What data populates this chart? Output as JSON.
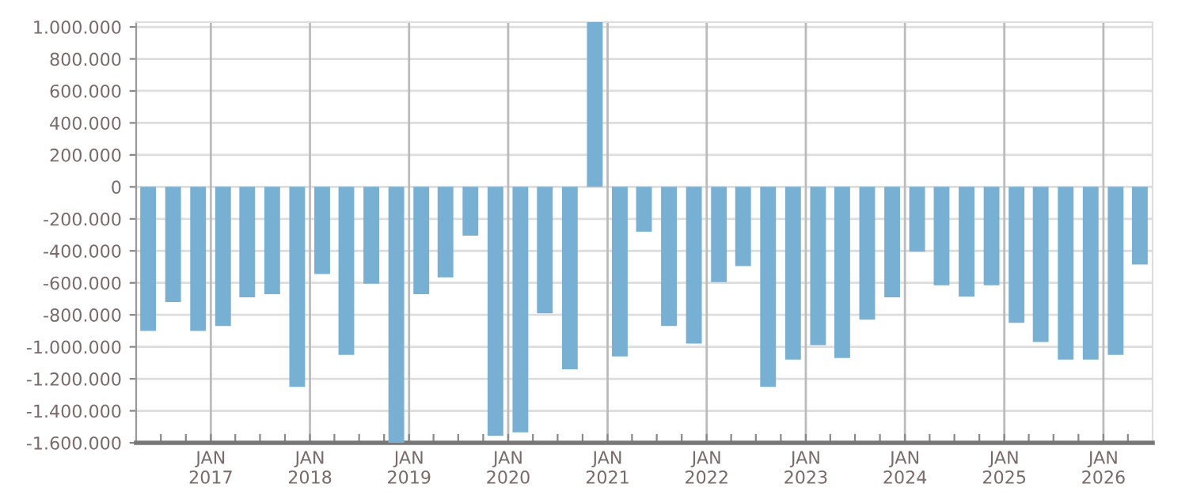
{
  "chart_data": {
    "type": "bar",
    "x": [
      "2016-05-15",
      "2016-08-15",
      "2016-11-15",
      "2017-02-15",
      "2017-05-15",
      "2017-08-15",
      "2017-11-15",
      "2018-02-15",
      "2018-05-15",
      "2018-08-15",
      "2018-11-15",
      "2019-02-15",
      "2019-05-15",
      "2019-08-15",
      "2019-11-15",
      "2020-02-15",
      "2020-05-15",
      "2020-08-15",
      "2020-11-15",
      "2021-02-15",
      "2021-05-15",
      "2021-08-15",
      "2021-11-15",
      "2022-02-15",
      "2022-05-15",
      "2022-08-15",
      "2022-11-15",
      "2023-02-15",
      "2023-05-15",
      "2023-08-15",
      "2023-11-15",
      "2024-02-15",
      "2024-05-15",
      "2024-08-15",
      "2024-11-15",
      "2025-02-15",
      "2025-05-15",
      "2025-08-15",
      "2025-11-15",
      "2026-02-15",
      "2026-05-15"
    ],
    "values": [
      -900000,
      -720000,
      -900000,
      -870000,
      -690000,
      -670000,
      -1250000,
      -545000,
      -1050000,
      -605000,
      -1600000,
      -670000,
      -565000,
      -305000,
      -1555000,
      -1535000,
      -790000,
      -1140000,
      1030000,
      -1060000,
      -280000,
      -870000,
      -980000,
      -595000,
      -495000,
      -1250000,
      -1080000,
      -990000,
      -1070000,
      -830000,
      -690000,
      -405000,
      -615000,
      -685000,
      -615000,
      -850000,
      -970000,
      -1080000,
      -1080000,
      -1050000,
      -485000
    ],
    "color": "#78b0d3",
    "ylim": [
      -1600000,
      1030000
    ],
    "yticks": [
      {
        "value": -1600000,
        "label": "-1.600.000"
      },
      {
        "value": -1400000,
        "label": "-1.400.000"
      },
      {
        "value": -1200000,
        "label": "-1.200.000"
      },
      {
        "value": -1000000,
        "label": "-1.000.000"
      },
      {
        "value": -800000,
        "label": "-800.000"
      },
      {
        "value": -600000,
        "label": "-600.000"
      },
      {
        "value": -400000,
        "label": "-400.000"
      },
      {
        "value": -200000,
        "label": "-200.000"
      },
      0,
      {
        "value": 200000,
        "label": "200.000"
      },
      {
        "value": 400000,
        "label": "400.000"
      },
      {
        "value": 600000,
        "label": "600.000"
      },
      {
        "value": 800000,
        "label": "800.000"
      },
      {
        "value": 1000000,
        "label": "1.000.000"
      }
    ],
    "xlim": [
      "2016-04-01",
      "2026-07-01"
    ],
    "xticks": [
      {
        "value": "2016-07-01",
        "label": null
      },
      {
        "value": "2016-10-01",
        "label": null
      },
      {
        "value": "2017-01-01",
        "label": "JAN\n2017"
      },
      {
        "value": "2017-04-01",
        "label": null
      },
      {
        "value": "2017-07-01",
        "label": null
      },
      {
        "value": "2017-10-01",
        "label": null
      },
      {
        "value": "2018-01-01",
        "label": "JAN\n2018"
      },
      {
        "value": "2018-04-01",
        "label": null
      },
      {
        "value": "2018-07-01",
        "label": null
      },
      {
        "value": "2018-10-01",
        "label": null
      },
      {
        "value": "2019-01-01",
        "label": "JAN\n2019"
      },
      {
        "value": "2019-04-01",
        "label": null
      },
      {
        "value": "2019-07-01",
        "label": null
      },
      {
        "value": "2019-10-01",
        "label": null
      },
      {
        "value": "2020-01-01",
        "label": "JAN\n2020"
      },
      {
        "value": "2020-04-01",
        "label": null
      },
      {
        "value": "2020-07-01",
        "label": null
      },
      {
        "value": "2020-10-01",
        "label": null
      },
      {
        "value": "2021-01-01",
        "label": "JAN\n2021"
      },
      {
        "value": "2021-04-01",
        "label": null
      },
      {
        "value": "2021-07-01",
        "label": null
      },
      {
        "value": "2021-10-01",
        "label": null
      },
      {
        "value": "2022-01-01",
        "label": "JAN\n2022"
      },
      {
        "value": "2022-04-01",
        "label": null
      },
      {
        "value": "2022-07-01",
        "label": null
      },
      {
        "value": "2022-10-01",
        "label": null
      },
      {
        "value": "2023-01-01",
        "label": "JAN\n2023"
      },
      {
        "value": "2023-04-01",
        "label": null
      },
      {
        "value": "2023-07-01",
        "label": null
      },
      {
        "value": "2023-10-01",
        "label": null
      },
      {
        "value": "2024-01-01",
        "label": "JAN\n2024"
      },
      {
        "value": "2024-04-01",
        "label": null
      },
      {
        "value": "2024-07-01",
        "label": null
      },
      {
        "value": "2024-10-01",
        "label": null
      },
      {
        "value": "2025-01-01",
        "label": "JAN\n2025"
      },
      {
        "value": "2025-04-01",
        "label": null
      },
      {
        "value": "2025-07-01",
        "label": null
      },
      {
        "value": "2025-10-01",
        "label": null
      },
      {
        "value": "2026-01-01",
        "label": "JAN\n2026"
      },
      {
        "value": "2026-04-01",
        "label": null
      }
    ],
    "grid": true
  }
}
